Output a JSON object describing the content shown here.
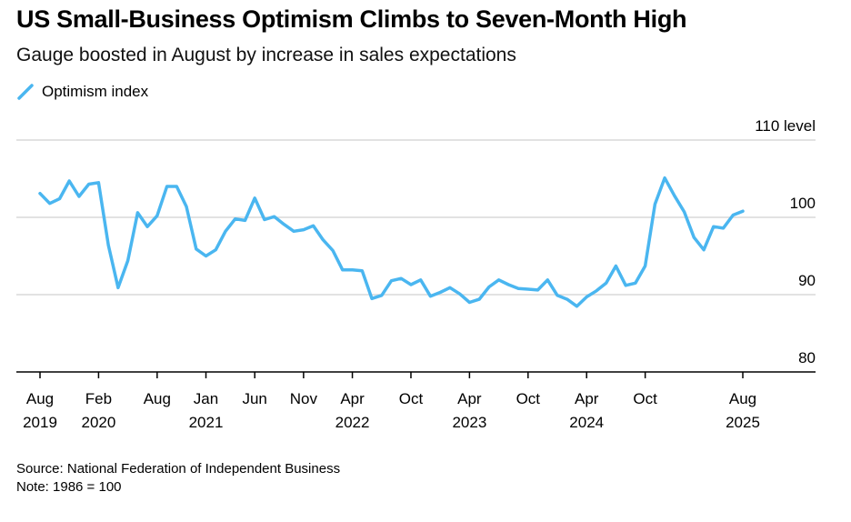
{
  "title": "US Small-Business Optimism Climbs to Seven-Month High",
  "subtitle": "Gauge boosted in August by increase in sales expectations",
  "legend_label": "Optimism index",
  "source": "Source: National Federation of Independent Business",
  "note": "Note: 1986 = 100",
  "colors": {
    "line": "#4ab6f0",
    "grid": "#d9d9d9",
    "axis": "#000000"
  },
  "chart_data": {
    "type": "line",
    "title": "US Small-Business Optimism Climbs to Seven-Month High",
    "subtitle": "Gauge boosted in August by increase in sales expectations",
    "ylabel": "level",
    "ylim": [
      80,
      110
    ],
    "yticks": [
      80,
      90,
      100,
      110
    ],
    "ytick_labels": [
      "80",
      "90",
      "100",
      "110 level"
    ],
    "xlim": [
      "2019-07",
      "2025-12"
    ],
    "xticks": [
      {
        "date": "2019-08",
        "label": [
          "Aug",
          "2019"
        ]
      },
      {
        "date": "2020-02",
        "label": [
          "Feb",
          "2020"
        ]
      },
      {
        "date": "2020-08",
        "label": [
          "Aug",
          ""
        ]
      },
      {
        "date": "2021-01",
        "label": [
          "Jan",
          "2021"
        ]
      },
      {
        "date": "2021-06",
        "label": [
          "Jun",
          ""
        ]
      },
      {
        "date": "2021-11",
        "label": [
          "Nov",
          ""
        ]
      },
      {
        "date": "2022-04",
        "label": [
          "Apr",
          "2022"
        ]
      },
      {
        "date": "2022-10",
        "label": [
          "Oct",
          ""
        ]
      },
      {
        "date": "2023-04",
        "label": [
          "Apr",
          "2023"
        ]
      },
      {
        "date": "2023-10",
        "label": [
          "Oct",
          ""
        ]
      },
      {
        "date": "2024-04",
        "label": [
          "Apr",
          "2024"
        ]
      },
      {
        "date": "2024-10",
        "label": [
          "Oct",
          ""
        ]
      },
      {
        "date": "2025-08",
        "label": [
          "Aug",
          "2025"
        ]
      }
    ],
    "grid": true,
    "legend": "top-left",
    "series": [
      {
        "name": "Optimism index",
        "x": [
          "2019-08",
          "2019-09",
          "2019-10",
          "2019-11",
          "2019-12",
          "2020-01",
          "2020-02",
          "2020-03",
          "2020-04",
          "2020-05",
          "2020-06",
          "2020-07",
          "2020-08",
          "2020-09",
          "2020-10",
          "2020-11",
          "2020-12",
          "2021-01",
          "2021-02",
          "2021-03",
          "2021-04",
          "2021-05",
          "2021-06",
          "2021-07",
          "2021-08",
          "2021-09",
          "2021-10",
          "2021-11",
          "2021-12",
          "2022-01",
          "2022-02",
          "2022-03",
          "2022-04",
          "2022-05",
          "2022-06",
          "2022-07",
          "2022-08",
          "2022-09",
          "2022-10",
          "2022-11",
          "2022-12",
          "2023-01",
          "2023-02",
          "2023-03",
          "2023-04",
          "2023-05",
          "2023-06",
          "2023-07",
          "2023-08",
          "2023-09",
          "2023-10",
          "2023-11",
          "2023-12",
          "2024-01",
          "2024-02",
          "2024-03",
          "2024-04",
          "2024-05",
          "2024-06",
          "2024-07",
          "2024-08",
          "2024-09",
          "2024-10",
          "2024-11",
          "2024-12",
          "2025-01",
          "2025-02",
          "2025-03",
          "2025-04",
          "2025-05",
          "2025-06",
          "2025-07",
          "2025-08"
        ],
        "values": [
          103.1,
          101.8,
          102.4,
          104.7,
          102.7,
          104.3,
          104.5,
          96.4,
          90.9,
          94.4,
          100.6,
          98.8,
          100.2,
          104.0,
          104.0,
          101.4,
          95.9,
          95.0,
          95.8,
          98.2,
          99.8,
          99.6,
          102.5,
          99.7,
          100.1,
          99.1,
          98.2,
          98.4,
          98.9,
          97.1,
          95.7,
          93.2,
          93.2,
          93.1,
          89.5,
          89.9,
          91.8,
          92.1,
          91.3,
          91.9,
          89.8,
          90.3,
          90.9,
          90.1,
          89.0,
          89.4,
          91.0,
          91.9,
          91.3,
          90.8,
          90.7,
          90.6,
          91.9,
          89.9,
          89.4,
          88.5,
          89.7,
          90.5,
          91.5,
          93.7,
          91.2,
          91.5,
          93.7,
          101.7,
          105.1,
          102.8,
          100.7,
          97.4,
          95.8,
          98.8,
          98.6,
          100.3,
          100.8
        ]
      }
    ]
  }
}
